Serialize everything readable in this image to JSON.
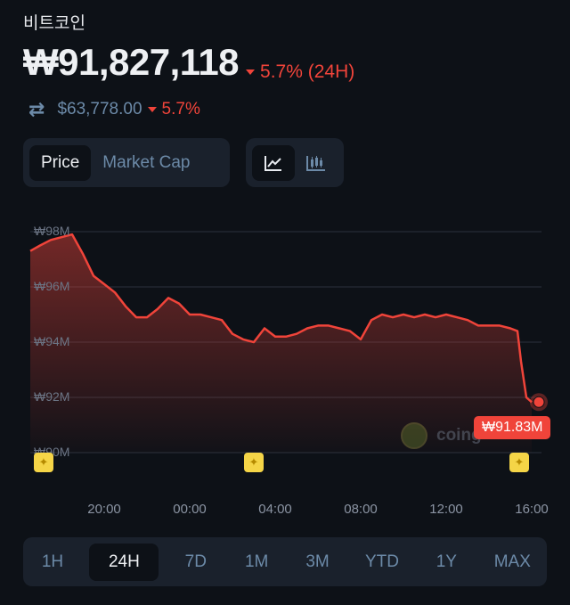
{
  "coin": {
    "name": "비트코인",
    "price": "₩91,827,118",
    "change_24h": "5.7% (24H)",
    "change_direction": "down",
    "usd_price": "$63,778.00",
    "usd_change": "5.7%"
  },
  "colors": {
    "down": "#f0443a",
    "accent_text": "#6c8aa8",
    "marker": "#f5d547"
  },
  "icons": {
    "swap": "swap-arrows-icon",
    "line_chart": "line-chart-icon",
    "candlestick": "candlestick-icon"
  },
  "metric_toggle": {
    "options": [
      "Price",
      "Market Cap"
    ],
    "selected": "Price"
  },
  "chart_type_toggle": {
    "options": [
      "line",
      "candlestick"
    ],
    "selected": "line"
  },
  "current_price_label": "₩91.83M",
  "watermark": "coingecko",
  "ranges": {
    "options": [
      "1H",
      "24H",
      "7D",
      "1M",
      "3M",
      "YTD",
      "1Y",
      "MAX"
    ],
    "selected": "24H"
  },
  "chart_data": {
    "type": "area",
    "y_tick_labels": [
      "₩98M",
      "₩96M",
      "₩94M",
      "₩92M",
      "₩90M"
    ],
    "y_ticks": [
      98,
      96,
      94,
      92,
      90
    ],
    "ylim": [
      90,
      98
    ],
    "y_unit": "M KRW",
    "x_tick_labels": [
      "20:00",
      "00:00",
      "04:00",
      "08:00",
      "12:00",
      "16:00"
    ],
    "grid": true,
    "series": [
      {
        "x": [
          "16:30",
          "17:00",
          "17:30",
          "18:00",
          "18:30",
          "19:00",
          "19:30",
          "20:00",
          "20:30",
          "21:00",
          "21:30",
          "22:00",
          "22:30",
          "23:00",
          "23:30",
          "00:00",
          "00:30",
          "01:00",
          "01:30",
          "02:00",
          "02:30",
          "03:00",
          "03:30",
          "04:00",
          "04:30",
          "05:00",
          "05:30",
          "06:00",
          "06:30",
          "07:00",
          "07:30",
          "08:00",
          "08:30",
          "09:00",
          "09:30",
          "10:00",
          "10:30",
          "11:00",
          "11:30",
          "12:00",
          "12:30",
          "13:00",
          "13:30",
          "14:00",
          "14:30",
          "15:00",
          "15:20",
          "15:30",
          "15:45",
          "16:00"
        ],
        "values": [
          97.3,
          97.5,
          97.7,
          97.8,
          97.9,
          97.2,
          96.4,
          96.1,
          95.8,
          95.3,
          94.9,
          94.9,
          95.2,
          95.6,
          95.4,
          95.0,
          95.0,
          94.9,
          94.8,
          94.3,
          94.1,
          94.0,
          94.5,
          94.2,
          94.2,
          94.3,
          94.5,
          94.6,
          94.6,
          94.5,
          94.4,
          94.1,
          94.8,
          95.0,
          94.9,
          95.0,
          94.9,
          95.0,
          94.9,
          95.0,
          94.9,
          94.8,
          94.6,
          94.6,
          94.6,
          94.5,
          94.4,
          93.3,
          92.0,
          91.83
        ]
      }
    ],
    "event_markers": [
      "17:10",
      "03:00",
      "15:25"
    ]
  }
}
